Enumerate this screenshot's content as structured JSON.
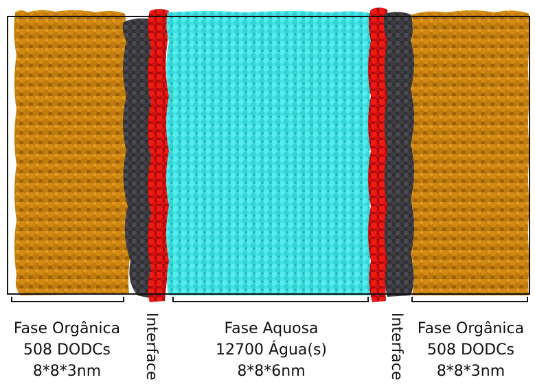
{
  "colors": {
    "organic": "#c9810e",
    "organic_dark": "#8a5608",
    "interface_gray": "#3b3b40",
    "interface_red": "#e0100f",
    "water": "#40e3e3",
    "water_dark": "#1fb1b3",
    "box": "#111111"
  },
  "regions": {
    "left_organic": {
      "line1": "Fase Orgânica",
      "line2": "508 DODCs",
      "line3": "8*8*3nm"
    },
    "left_interface": {
      "label": "Interface"
    },
    "aqueous": {
      "line1": "Fase Aquosa",
      "line2": "12700 Água(s)",
      "line3": "8*8*6nm"
    },
    "right_interface": {
      "label": "Interface"
    },
    "right_organic": {
      "line1": "Fase Orgânica",
      "line2": "508 DODCs",
      "line3": "8*8*3nm"
    }
  }
}
